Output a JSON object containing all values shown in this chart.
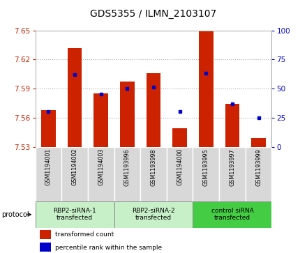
{
  "title": "GDS5355 / ILMN_2103107",
  "samples": [
    "GSM1194001",
    "GSM1194002",
    "GSM1194003",
    "GSM1193996",
    "GSM1193998",
    "GSM1194000",
    "GSM1193995",
    "GSM1193997",
    "GSM1193999"
  ],
  "bar_values": [
    7.568,
    7.632,
    7.585,
    7.597,
    7.606,
    7.549,
    7.651,
    7.574,
    7.539
  ],
  "percentile_values": [
    30,
    62,
    45,
    50,
    51,
    30,
    63,
    37,
    25
  ],
  "ymin": 7.53,
  "ymax": 7.65,
  "yticks": [
    7.53,
    7.56,
    7.59,
    7.62,
    7.65
  ],
  "right_yticks": [
    0,
    25,
    50,
    75,
    100
  ],
  "bar_color": "#cc2200",
  "dot_color": "#0000cc",
  "groups": [
    {
      "label": "RBP2-siRNA-1\ntransfected",
      "start": 0,
      "end": 3
    },
    {
      "label": "RBP2-siRNA-2\ntransfected",
      "start": 3,
      "end": 6
    },
    {
      "label": "control siRNA\ntransfected",
      "start": 6,
      "end": 9
    }
  ],
  "group_colors": [
    "#c8f0c8",
    "#c8f0c8",
    "#44cc44"
  ],
  "legend_bar_label": "transformed count",
  "legend_dot_label": "percentile rank within the sample",
  "protocol_label": "protocol",
  "plot_bg": "#ffffff",
  "grid_color": "#aaaaaa",
  "tick_box_color": "#d8d8d8"
}
